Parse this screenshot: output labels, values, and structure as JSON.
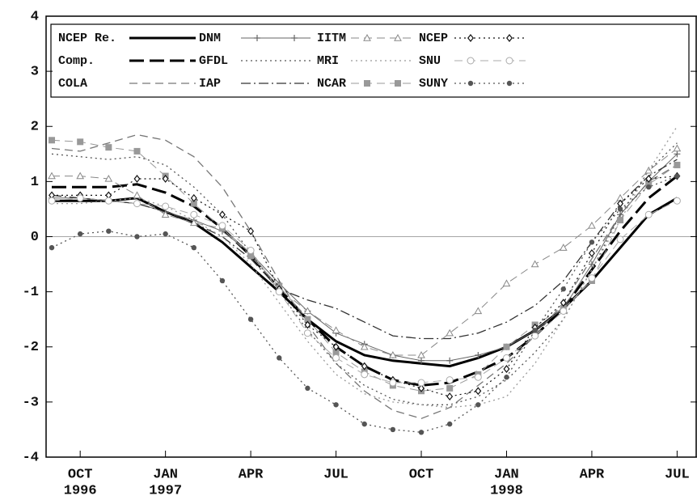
{
  "chart_data": {
    "type": "line",
    "x": [
      9,
      10,
      11,
      12,
      13,
      14,
      15,
      16,
      17,
      18,
      19,
      20,
      21,
      22,
      23,
      24,
      25,
      26,
      27,
      28,
      29,
      30,
      31
    ],
    "xlim": [
      8.8,
      31.7
    ],
    "xticks": [
      {
        "value": 10,
        "label": "OCT"
      },
      {
        "value": 13,
        "label": "JAN"
      },
      {
        "value": 16,
        "label": "APR"
      },
      {
        "value": 19,
        "label": "JUL"
      },
      {
        "value": 22,
        "label": "OCT"
      },
      {
        "value": 25,
        "label": "JAN"
      },
      {
        "value": 28,
        "label": "APR"
      },
      {
        "value": 31,
        "label": "JUL"
      }
    ],
    "xticks_year": [
      {
        "value": 10,
        "label": "1996"
      },
      {
        "value": 13,
        "label": "1997"
      },
      {
        "value": 25,
        "label": "1998"
      }
    ],
    "ylim": [
      -4,
      4
    ],
    "yticks": [
      -4,
      -3,
      -2,
      -1,
      0,
      1,
      2,
      3,
      4
    ],
    "zero_line": true,
    "series": [
      {
        "name": "NCEP Re.",
        "color": "#000000",
        "dash": "solid",
        "width": 3,
        "marker": "none",
        "values": [
          0.65,
          0.65,
          0.65,
          0.7,
          0.45,
          0.25,
          -0.1,
          -0.55,
          -1.0,
          -1.5,
          -1.9,
          -2.15,
          -2.25,
          -2.3,
          -2.35,
          -2.2,
          -2.0,
          -1.7,
          -1.3,
          -0.8,
          -0.2,
          0.4,
          0.7
        ]
      },
      {
        "name": "Comp.",
        "color": "#000000",
        "dash": "longdash",
        "width": 3,
        "marker": "none",
        "values": [
          0.9,
          0.9,
          0.9,
          0.95,
          0.8,
          0.55,
          0.15,
          -0.35,
          -0.95,
          -1.5,
          -2.0,
          -2.35,
          -2.6,
          -2.7,
          -2.65,
          -2.45,
          -2.2,
          -1.8,
          -1.3,
          -0.6,
          0.1,
          0.7,
          1.1
        ]
      },
      {
        "name": "COLA",
        "color": "#777777",
        "dash": "dash",
        "width": 1.3,
        "marker": "none",
        "values": [
          1.6,
          1.55,
          1.7,
          1.85,
          1.75,
          1.45,
          0.9,
          0.1,
          -0.8,
          -1.6,
          -2.3,
          -2.8,
          -3.15,
          -3.3,
          -3.1,
          -2.7,
          -2.3,
          -1.8,
          -1.2,
          -0.4,
          0.4,
          1.0,
          1.3
        ]
      },
      {
        "name": "DNM",
        "color": "#666666",
        "dash": "solid",
        "width": 1,
        "marker": "plus",
        "values": [
          0.7,
          0.7,
          0.65,
          0.6,
          0.45,
          0.3,
          0.1,
          -0.3,
          -0.85,
          -1.35,
          -1.75,
          -1.95,
          -2.15,
          -2.25,
          -2.25,
          -2.15,
          -2.0,
          -1.7,
          -1.3,
          -0.5,
          0.4,
          1.0,
          1.5
        ]
      },
      {
        "name": "GFDL",
        "color": "#555555",
        "dash": "dot",
        "width": 1.3,
        "marker": "none",
        "values": [
          1.5,
          1.45,
          1.4,
          1.45,
          1.3,
          0.9,
          0.4,
          -0.3,
          -1.0,
          -1.7,
          -2.3,
          -2.7,
          -2.95,
          -3.05,
          -3.05,
          -2.9,
          -2.6,
          -2.1,
          -1.5,
          -0.6,
          0.4,
          1.2,
          1.7
        ]
      },
      {
        "name": "IAP",
        "color": "#333333",
        "dash": "dashdot",
        "width": 1.3,
        "marker": "none",
        "values": [
          0.75,
          0.7,
          0.65,
          0.6,
          0.45,
          0.25,
          0.0,
          -0.4,
          -0.95,
          -1.15,
          -1.3,
          -1.55,
          -1.8,
          -1.85,
          -1.85,
          -1.75,
          -1.55,
          -1.25,
          -0.8,
          -0.1,
          0.6,
          1.1,
          1.4
        ]
      },
      {
        "name": "IITM",
        "color": "#888888",
        "dash": "dash",
        "width": 1,
        "marker": "triangle",
        "values": [
          1.1,
          1.1,
          1.05,
          0.75,
          0.4,
          0.25,
          0.15,
          -0.3,
          -0.95,
          -1.35,
          -1.7,
          -2.0,
          -2.15,
          -2.15,
          -1.75,
          -1.35,
          -0.85,
          -0.5,
          -0.2,
          0.2,
          0.7,
          1.2,
          1.6
        ]
      },
      {
        "name": "MRI",
        "color": "#999999",
        "dash": "dot",
        "width": 1.3,
        "marker": "none",
        "values": [
          0.6,
          0.6,
          0.65,
          0.7,
          0.55,
          0.3,
          0.0,
          -0.5,
          -1.2,
          -1.9,
          -2.5,
          -2.85,
          -3.0,
          -3.05,
          -3.1,
          -3.05,
          -2.9,
          -2.3,
          -1.5,
          -0.6,
          0.3,
          1.2,
          2.0
        ]
      },
      {
        "name": "NCAR",
        "color": "#999999",
        "dash": "dash",
        "width": 1,
        "marker": "square",
        "values": [
          1.75,
          1.72,
          1.62,
          1.55,
          1.1,
          0.6,
          0.15,
          -0.35,
          -0.9,
          -1.5,
          -2.1,
          -2.45,
          -2.7,
          -2.8,
          -2.75,
          -2.5,
          -2.0,
          -1.6,
          -1.3,
          -0.8,
          0.3,
          0.95,
          1.3
        ]
      },
      {
        "name": "NCEP",
        "color": "#111111",
        "dash": "dot",
        "width": 1.2,
        "marker": "diamond",
        "values": [
          0.75,
          0.75,
          0.75,
          1.05,
          1.05,
          0.7,
          0.4,
          0.1,
          -0.95,
          -1.6,
          -2.0,
          -2.35,
          -2.6,
          -2.75,
          -2.9,
          -2.8,
          -2.4,
          -1.65,
          -1.2,
          -0.3,
          0.6,
          1.05,
          1.1
        ]
      },
      {
        "name": "SNU",
        "color": "#aaaaaa",
        "dash": "dash",
        "width": 1,
        "marker": "circle",
        "values": [
          0.65,
          0.7,
          0.65,
          0.6,
          0.55,
          0.4,
          0.2,
          -0.25,
          -1.0,
          -1.75,
          -2.2,
          -2.5,
          -2.65,
          -2.65,
          -2.6,
          -2.55,
          -2.2,
          -1.8,
          -1.35,
          -0.75,
          -0.05,
          0.4,
          0.65
        ]
      },
      {
        "name": "SUNY",
        "color": "#555555",
        "dash": "dot",
        "width": 1.3,
        "marker": "dot",
        "values": [
          -0.2,
          0.05,
          0.1,
          0.0,
          0.05,
          -0.2,
          -0.8,
          -1.5,
          -2.2,
          -2.75,
          -3.05,
          -3.4,
          -3.5,
          -3.55,
          -3.4,
          -3.05,
          -2.55,
          -1.7,
          -0.95,
          -0.1,
          0.5,
          0.9,
          1.1
        ]
      }
    ]
  }
}
